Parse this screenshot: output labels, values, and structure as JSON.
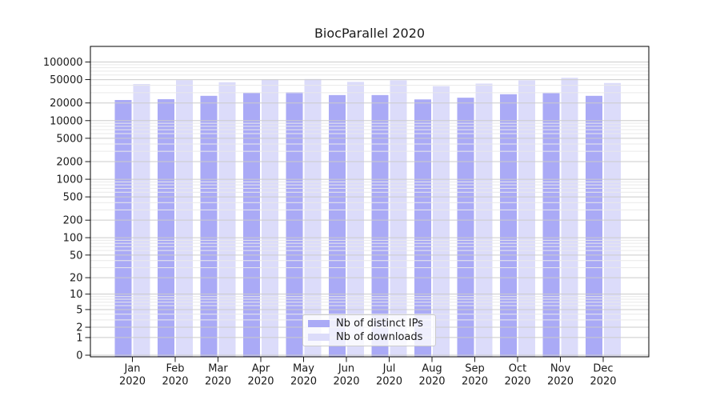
{
  "title": "BiocParallel 2020",
  "chart_data": {
    "type": "bar",
    "title": "BiocParallel 2020",
    "yscale": "log10(value+1)",
    "grid": true,
    "legend_position": "lower center inside axes",
    "categories": [
      "Jan",
      "Feb",
      "Mar",
      "Apr",
      "May",
      "Jun",
      "Jul",
      "Aug",
      "Sep",
      "Oct",
      "Nov",
      "Dec"
    ],
    "x_sublabel": "2020",
    "yticks": [
      0,
      1,
      2,
      5,
      10,
      20,
      50,
      100,
      200,
      500,
      1000,
      2000,
      5000,
      10000,
      20000,
      50000,
      100000
    ],
    "ylim": [
      0,
      180000
    ],
    "series": [
      {
        "name": "Nb of distinct IPs",
        "color": "#aaaaf6",
        "values": [
          22500,
          23200,
          26500,
          30000,
          30600,
          27300,
          27300,
          23000,
          24600,
          28200,
          29400,
          26500
        ]
      },
      {
        "name": "Nb of downloads",
        "color": "#dcdcfa",
        "values": [
          42100,
          49000,
          45200,
          50600,
          51200,
          45800,
          48600,
          38700,
          42900,
          48600,
          53800,
          43800
        ]
      }
    ]
  },
  "colors": {
    "background": "#ffffff",
    "bar_distinct_ips": "#aaaaf6",
    "bar_downloads": "#dcdcfa",
    "grid_major": "#cbcbcb",
    "grid_minor": "#e9e9e9",
    "axis": "#000000",
    "text": "#1a1a1a",
    "legend_border": "#cbcbcb"
  }
}
